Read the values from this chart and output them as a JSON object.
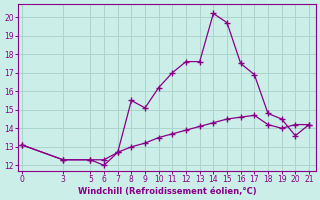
{
  "xlabel": "Windchill (Refroidissement éolien,°C)",
  "bg_color": "#cceee8",
  "grid_color": "#aad4cc",
  "line_color": "#880088",
  "spine_color": "#880088",
  "x_ticks": [
    0,
    3,
    5,
    6,
    7,
    8,
    9,
    10,
    11,
    12,
    13,
    14,
    15,
    16,
    17,
    18,
    19,
    20,
    21
  ],
  "ylim": [
    11.7,
    20.7
  ],
  "xlim": [
    -0.3,
    21.5
  ],
  "yticks": [
    12,
    13,
    14,
    15,
    16,
    17,
    18,
    19,
    20
  ],
  "series1_x": [
    0,
    3,
    5,
    6,
    7,
    8,
    9,
    10,
    11,
    12,
    13,
    14,
    15,
    16,
    17,
    18,
    19,
    20,
    21
  ],
  "series1_y": [
    13.1,
    12.3,
    12.3,
    12.0,
    12.7,
    15.5,
    15.1,
    16.2,
    17.0,
    17.6,
    17.6,
    20.2,
    19.7,
    17.5,
    16.9,
    14.8,
    14.5,
    13.6,
    14.2
  ],
  "series2_x": [
    0,
    3,
    5,
    6,
    7,
    8,
    9,
    10,
    11,
    12,
    13,
    14,
    15,
    16,
    17,
    18,
    19,
    20,
    21
  ],
  "series2_y": [
    13.1,
    12.3,
    12.3,
    12.3,
    12.7,
    13.0,
    13.2,
    13.5,
    13.7,
    13.9,
    14.1,
    14.3,
    14.5,
    14.6,
    14.7,
    14.2,
    14.0,
    14.2,
    14.2
  ],
  "tick_fontsize": 5.5,
  "xlabel_fontsize": 6.0
}
